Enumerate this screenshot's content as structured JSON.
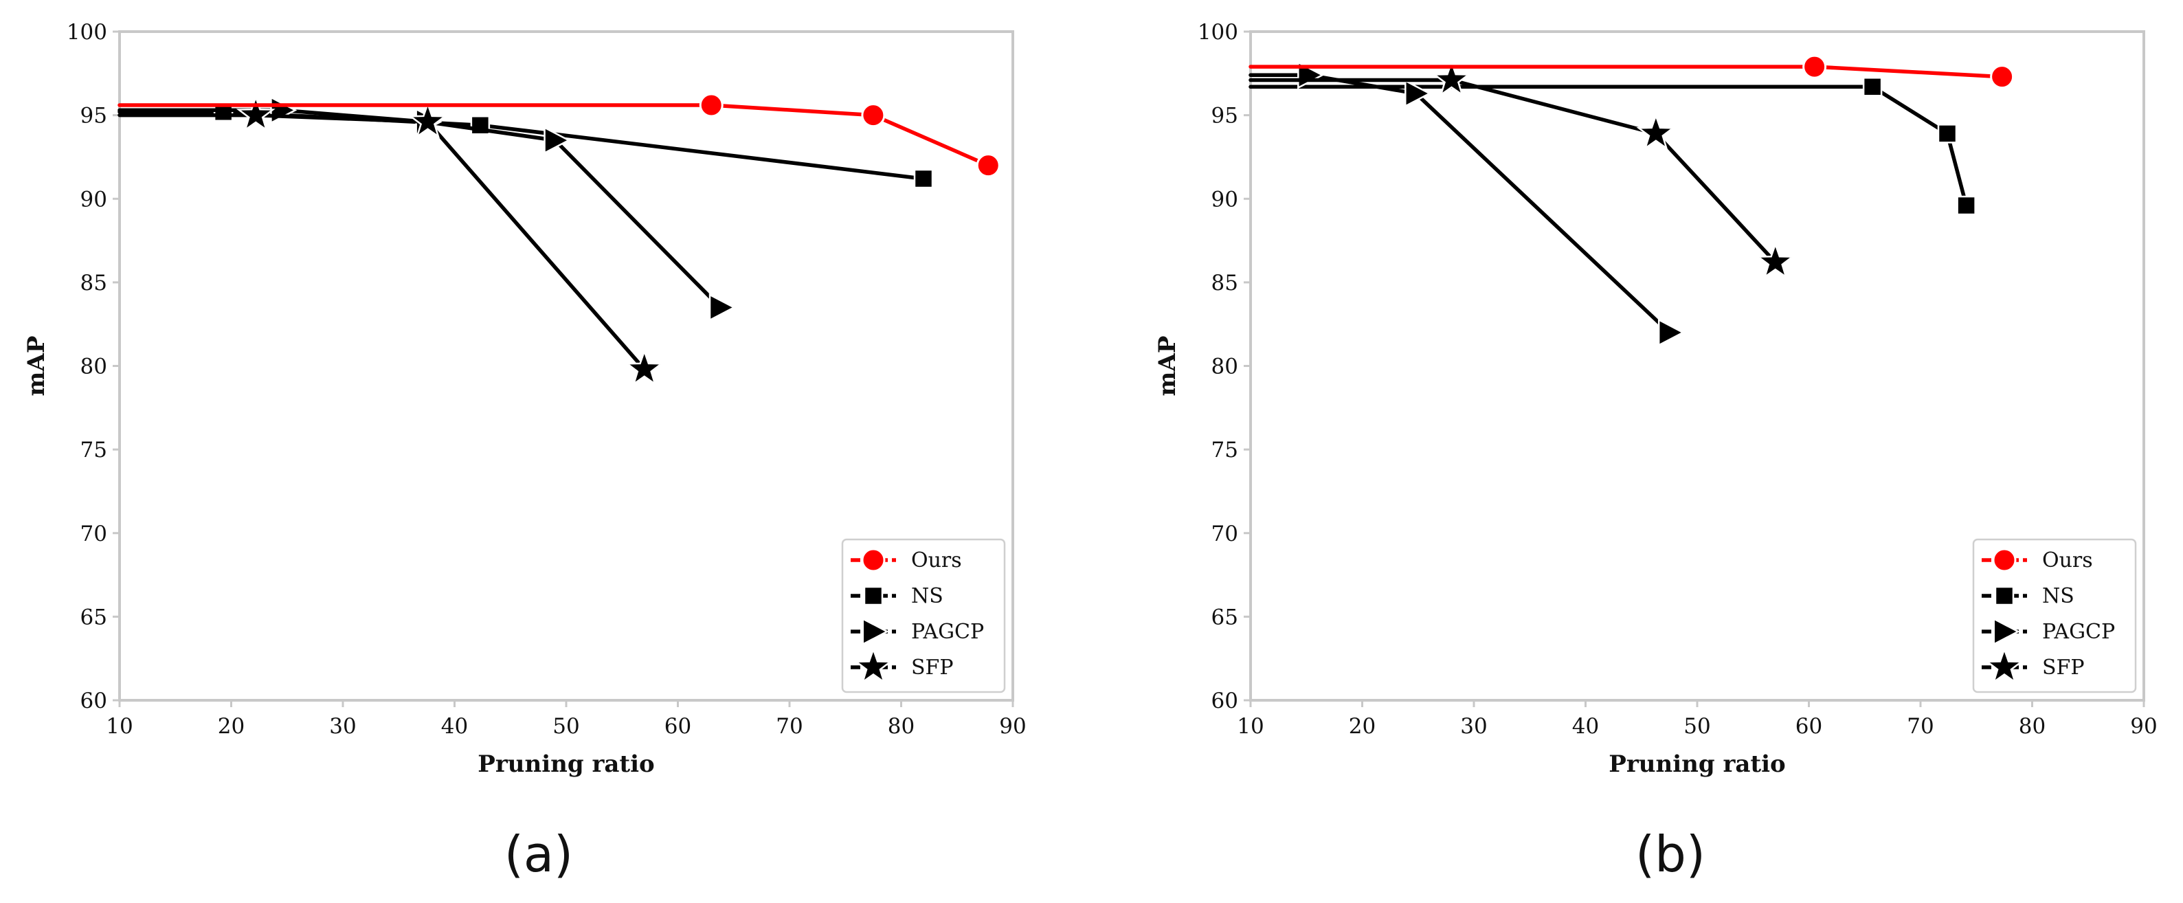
{
  "chart_data": [
    {
      "type": "line",
      "panel_label": "(a)",
      "xlabel": "Pruning ratio",
      "ylabel": "mAP",
      "xlim": [
        10,
        90
      ],
      "ylim": [
        60,
        100
      ],
      "xticks": [
        10,
        20,
        30,
        40,
        50,
        60,
        70,
        80,
        90
      ],
      "yticks": [
        60,
        65,
        70,
        75,
        80,
        85,
        90,
        95,
        100
      ],
      "grid": false,
      "legend_position": "bottom-right",
      "series": [
        {
          "name": "Ours",
          "color": "#ff0000",
          "marker": "circle",
          "x": [
            10,
            63,
            77.5,
            87.8
          ],
          "y": [
            95.6,
            95.6,
            95.0,
            92.0
          ],
          "marked": [
            false,
            true,
            true,
            true
          ]
        },
        {
          "name": "NS",
          "color": "#000000",
          "marker": "square",
          "x": [
            10,
            19.3,
            42.3,
            82
          ],
          "y": [
            95.2,
            95.2,
            94.4,
            91.2
          ],
          "marked": [
            false,
            true,
            true,
            true
          ]
        },
        {
          "name": "PAGCP",
          "color": "#000000",
          "marker": "triangle-right",
          "x": [
            10,
            24.5,
            37.5,
            49,
            63.8
          ],
          "y": [
            95.3,
            95.3,
            94.6,
            93.5,
            83.5
          ],
          "marked": [
            false,
            true,
            true,
            true,
            true
          ]
        },
        {
          "name": "SFP",
          "color": "#000000",
          "marker": "star",
          "x": [
            10,
            22.2,
            37.6,
            57
          ],
          "y": [
            95.0,
            95.0,
            94.6,
            79.8
          ],
          "marked": [
            false,
            true,
            true,
            true
          ]
        }
      ]
    },
    {
      "type": "line",
      "panel_label": "(b)",
      "xlabel": "Pruning ratio",
      "ylabel": "mAP",
      "xlim": [
        10,
        90
      ],
      "ylim": [
        60,
        100
      ],
      "xticks": [
        10,
        20,
        30,
        40,
        50,
        60,
        70,
        80,
        90
      ],
      "yticks": [
        60,
        65,
        70,
        75,
        80,
        85,
        90,
        95,
        100
      ],
      "grid": false,
      "legend_position": "bottom-right",
      "series": [
        {
          "name": "Ours",
          "color": "#ff0000",
          "marker": "circle",
          "x": [
            10,
            60.5,
            77.3
          ],
          "y": [
            97.9,
            97.9,
            97.3
          ],
          "marked": [
            false,
            true,
            true
          ]
        },
        {
          "name": "NS",
          "color": "#000000",
          "marker": "square",
          "x": [
            10,
            65.7,
            72.4,
            74.1
          ],
          "y": [
            96.7,
            96.7,
            93.9,
            89.6
          ],
          "marked": [
            false,
            true,
            true,
            true
          ]
        },
        {
          "name": "PAGCP",
          "color": "#000000",
          "marker": "triangle-right",
          "x": [
            10,
            15.2,
            24.8,
            47.5
          ],
          "y": [
            97.4,
            97.4,
            96.3,
            82.0
          ],
          "marked": [
            false,
            true,
            true,
            true
          ]
        },
        {
          "name": "SFP",
          "color": "#000000",
          "marker": "star",
          "x": [
            10,
            28,
            46.3,
            57
          ],
          "y": [
            97.1,
            97.1,
            93.9,
            86.2
          ],
          "marked": [
            false,
            true,
            true,
            true
          ]
        }
      ]
    }
  ]
}
